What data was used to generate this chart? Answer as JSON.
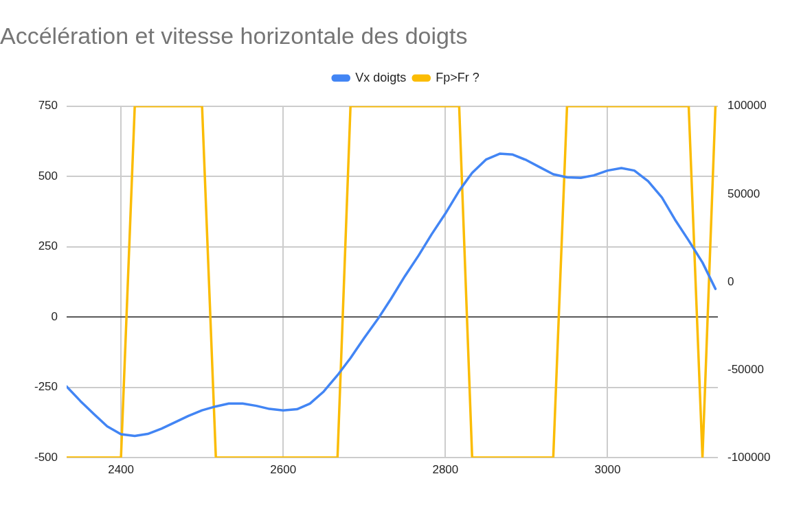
{
  "chart_data": {
    "type": "line",
    "title": "Accélération et vitesse horizontale des doigts",
    "x": [
      2333,
      2350,
      2367,
      2383,
      2400,
      2417,
      2433,
      2450,
      2467,
      2483,
      2500,
      2517,
      2533,
      2550,
      2567,
      2583,
      2600,
      2617,
      2633,
      2650,
      2667,
      2683,
      2700,
      2717,
      2733,
      2750,
      2767,
      2783,
      2800,
      2817,
      2833,
      2850,
      2867,
      2883,
      2900,
      2917,
      2933,
      2950,
      2967,
      2983,
      3000,
      3017,
      3033,
      3050,
      3067,
      3083,
      3100,
      3117,
      3133
    ],
    "series": [
      {
        "name": "Vx doigts",
        "color": "#4285f4",
        "values": [
          -247,
          -299,
          -346,
          -389,
          -417,
          -423,
          -416,
          -397,
          -374,
          -352,
          -332,
          -318,
          -308,
          -308,
          -316,
          -327,
          -332,
          -328,
          -308,
          -265,
          -207,
          -146,
          -74,
          -6,
          65,
          145,
          219,
          294,
          368,
          449,
          513,
          560,
          581,
          578,
          558,
          532,
          508,
          497,
          495,
          504,
          521,
          530,
          521,
          483,
          425,
          347,
          272,
          194,
          100
        ]
      },
      {
        "name": "Fp>Fr ?",
        "color": "#fbbc04",
        "axis": "y2",
        "values": [
          -100000,
          -100000,
          -100000,
          -100000,
          -100000,
          100000,
          100000,
          100000,
          100000,
          100000,
          100000,
          -100000,
          -100000,
          -100000,
          -100000,
          -100000,
          -100000,
          -100000,
          -100000,
          -100000,
          -100000,
          100000,
          100000,
          100000,
          100000,
          100000,
          100000,
          100000,
          100000,
          100000,
          -100000,
          -100000,
          -100000,
          -100000,
          -100000,
          -100000,
          -100000,
          100000,
          100000,
          100000,
          100000,
          100000,
          100000,
          100000,
          100000,
          100000,
          100000,
          -100000,
          100000
        ]
      }
    ],
    "xlim": [
      2333,
      3136
    ],
    "xticks": [
      2400,
      2600,
      2800,
      3000
    ],
    "ylim": [
      -500,
      750
    ],
    "yticks": [
      -500,
      -250,
      0,
      250,
      500,
      750
    ],
    "y2lim": [
      -100000,
      100000
    ],
    "y2ticks": [
      -100000,
      -50000,
      0,
      50000,
      100000
    ],
    "ref_lines": [
      {
        "axis": "y",
        "value": 0,
        "color": "#333333"
      }
    ],
    "grid": true,
    "legend": "top",
    "marker": "none",
    "line_style": "solid"
  }
}
